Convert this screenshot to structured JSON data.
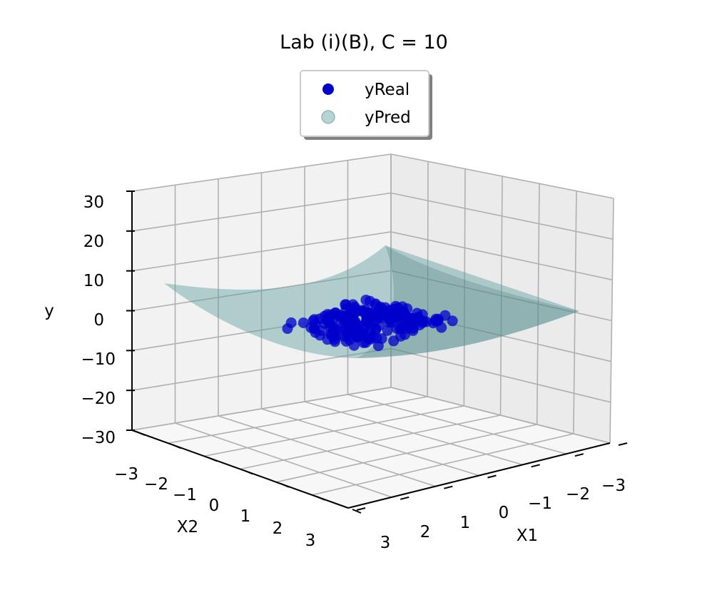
{
  "chart_data": {
    "type": "scatter3d",
    "title": "Lab (i)(B), C = 10",
    "xlabel": "X1",
    "ylabel": "X2",
    "zlabel": "y",
    "xlim": [
      -3,
      3
    ],
    "ylim": [
      -3,
      3
    ],
    "zlim": [
      -30,
      30
    ],
    "x_ticks": [
      "−3",
      "−2",
      "−1",
      "0",
      "1",
      "2",
      "3"
    ],
    "y_ticks": [
      "−3",
      "−2",
      "−1",
      "0",
      "1",
      "2",
      "3"
    ],
    "z_ticks": [
      "30",
      "20",
      "10",
      "0",
      "−10",
      "−20",
      "−30"
    ],
    "grid": true,
    "legend": {
      "position": "top-center",
      "entries": [
        "yReal",
        "yPred"
      ]
    },
    "series": [
      {
        "name": "yReal",
        "kind": "scatter",
        "color": "#0000cc",
        "note_points": "approximately 200 points clustered in X1,X2 within about [-1, 1], y near 0",
        "x": [
          -0.9,
          -0.7,
          -0.5,
          -0.3,
          -0.1,
          0.1,
          0.3,
          0.5,
          0.7,
          0.9,
          -0.6,
          -0.2,
          0.2,
          0.6,
          0.0,
          -0.4,
          0.4,
          -0.8,
          0.8,
          0.05
        ],
        "y": [
          0.8,
          0.6,
          0.4,
          0.2,
          0.0,
          -0.2,
          -0.4,
          -0.6,
          -0.8,
          0.5,
          -0.5,
          0.3,
          -0.3,
          0.1,
          -0.1,
          0.7,
          -0.7,
          0.0,
          0.2,
          -0.9
        ],
        "z": [
          1,
          0,
          -1,
          2,
          0,
          -1,
          1,
          0,
          -2,
          1,
          0,
          1,
          -1,
          2,
          0,
          -1,
          1,
          0,
          -1,
          0
        ]
      },
      {
        "name": "yPred",
        "kind": "surface",
        "color": "#5f9ea0",
        "opacity": 0.45
      }
    ]
  }
}
